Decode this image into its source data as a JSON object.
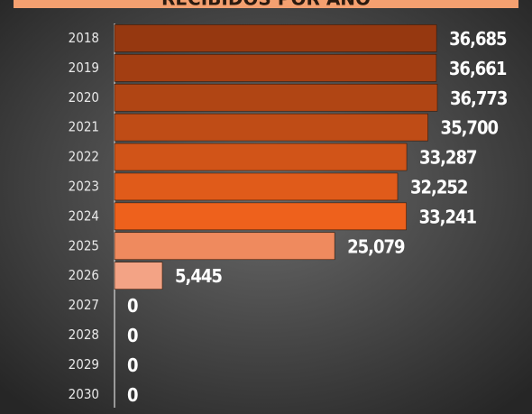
{
  "chart_data": {
    "type": "barh",
    "title": "RECIBIDOS POR AÑO",
    "categories": [
      "2018",
      "2019",
      "2020",
      "2021",
      "2022",
      "2023",
      "2024",
      "2025",
      "2026",
      "2027",
      "2028",
      "2029",
      "2030"
    ],
    "values": [
      36685,
      36661,
      36773,
      35700,
      33287,
      32252,
      33241,
      25079,
      5445,
      0,
      0,
      0,
      0
    ],
    "value_labels": [
      "36,685",
      "36,661",
      "36,773",
      "35,700",
      "33,287",
      "32,252",
      "33,241",
      "25,079",
      "5,445",
      "0",
      "0",
      "0",
      "0"
    ],
    "colors": [
      "#963810",
      "#a33e12",
      "#b04514",
      "#bf4c16",
      "#d15418",
      "#e05b1a",
      "#ee611c",
      "#ef8a5e",
      "#f3a385",
      "#f3a385",
      "#f3a385",
      "#f3a385",
      "#f3a385"
    ]
  }
}
